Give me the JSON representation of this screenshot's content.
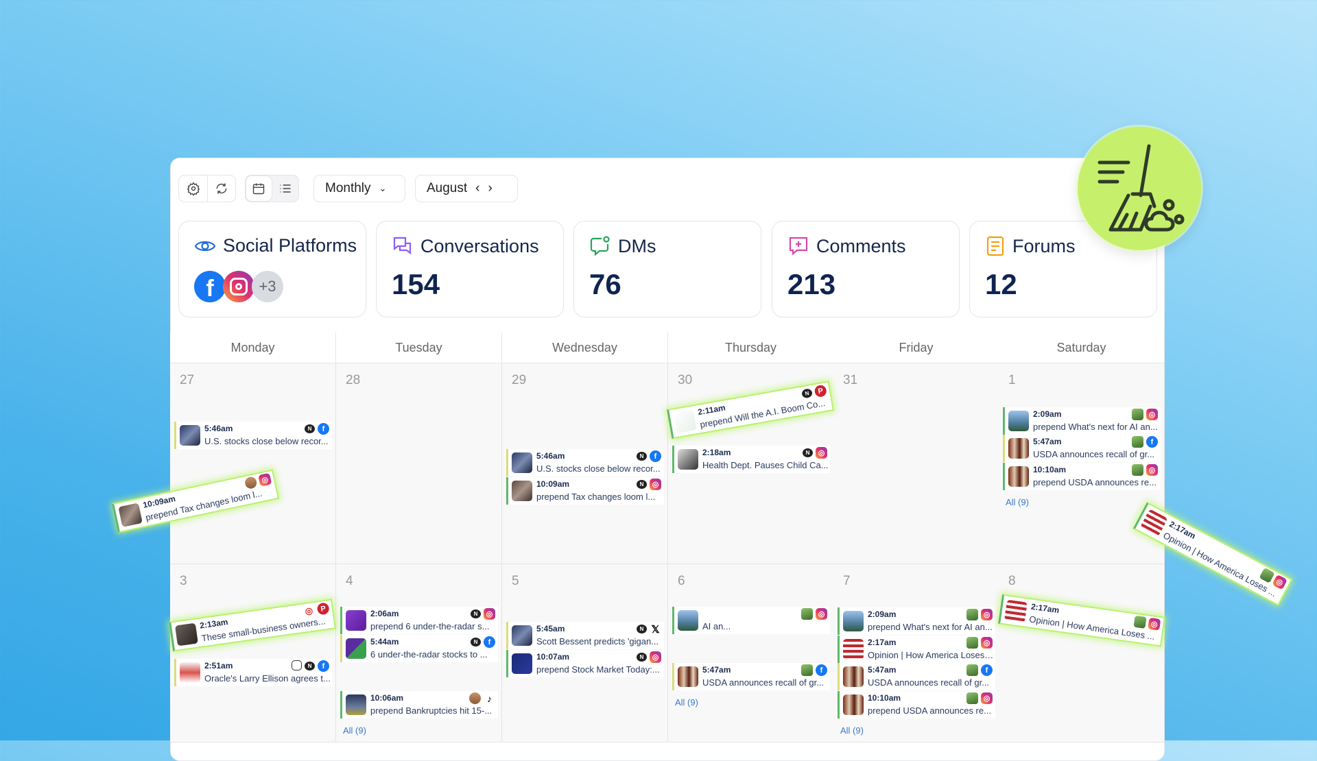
{
  "toolbar": {
    "view_mode": "Monthly",
    "month": "August"
  },
  "stats": [
    {
      "title": "Social Platforms",
      "platforms": [
        "facebook",
        "instagram"
      ],
      "more": "+3",
      "icon": "eye-icon"
    },
    {
      "title": "Conversations",
      "value": "154",
      "icon": "chat-bubbles-icon",
      "color": "#8b5cf6"
    },
    {
      "title": "DMs",
      "value": "76",
      "icon": "message-icon",
      "color": "#22a55a"
    },
    {
      "title": "Comments",
      "value": "213",
      "icon": "comment-plus-icon",
      "color": "#d946a8"
    },
    {
      "title": "Forums",
      "value": "12",
      "icon": "document-icon",
      "color": "#f59e0b"
    }
  ],
  "weekdays": [
    "Monday",
    "Tuesday",
    "Wednesday",
    "Thursday",
    "Friday",
    "Saturday"
  ],
  "cells": [
    {
      "day": "27",
      "events": [
        {
          "time": "5:46am",
          "title": "U.S. stocks close below recor...",
          "thumb": "people",
          "badge": "news",
          "platform": "fb",
          "accent": "y"
        }
      ]
    },
    {
      "day": "28",
      "events": []
    },
    {
      "day": "29",
      "events": [
        {
          "time": "5:46am",
          "title": "U.S. stocks close below recor...",
          "thumb": "people",
          "badge": "news",
          "platform": "fb",
          "accent": "y"
        },
        {
          "time": "10:09am",
          "title": "prepend Tax changes loom l...",
          "thumb": "street",
          "badge": "news",
          "platform": "ig",
          "accent": "g"
        }
      ]
    },
    {
      "day": "30",
      "events": [
        {
          "time": "2:18am",
          "title": "Health Dept. Pauses Child Ca...",
          "thumb": "gray",
          "badge": "news",
          "platform": "ig",
          "accent": "g"
        }
      ]
    },
    {
      "day": "31",
      "events": []
    },
    {
      "day": "1",
      "events": [
        {
          "time": "2:09am",
          "title": "prepend What's next for AI an...",
          "thumb": "building",
          "badge": "photo",
          "platform": "ig",
          "accent": "g"
        },
        {
          "time": "5:47am",
          "title": "USDA announces recall of gr...",
          "thumb": "food",
          "badge": "photo",
          "platform": "fb",
          "accent": "y"
        },
        {
          "time": "10:10am",
          "title": "prepend USDA announces re...",
          "thumb": "food",
          "badge": "photo",
          "platform": "ig",
          "accent": "g"
        }
      ],
      "all": "All (9)"
    },
    {
      "day": "3",
      "events": [
        {
          "time": "2:51am",
          "title": "Oracle's Larry Ellison agrees t...",
          "thumb": "red",
          "badge": "cam",
          "badge2": "news",
          "platform": "fb",
          "accent": "y"
        }
      ]
    },
    {
      "day": "4",
      "events": [
        {
          "time": "2:06am",
          "title": "prepend 6 under-the-radar s...",
          "thumb": "purple",
          "badge": "news",
          "platform": "ig",
          "accent": "g"
        },
        {
          "time": "5:44am",
          "title": "6 under-the-radar stocks to ...",
          "thumb": "ho",
          "badge": "news",
          "platform": "fb",
          "accent": "y"
        },
        {
          "time": "10:06am",
          "title": "prepend Bankruptcies hit 15-...",
          "thumb": "plane",
          "badge": "face",
          "platform": "tt",
          "accent": "g"
        }
      ],
      "all": "All (9)"
    },
    {
      "day": "5",
      "events": [
        {
          "time": "5:45am",
          "title": "Scott Bessent predicts 'gigan...",
          "thumb": "people",
          "badge": "news",
          "platform": "x",
          "accent": "y"
        },
        {
          "time": "10:07am",
          "title": "prepend Stock Market Today:...",
          "thumb": "navy",
          "badge": "news",
          "platform": "ig",
          "accent": "g"
        }
      ]
    },
    {
      "day": "6",
      "events": [
        {
          "time": "",
          "title": "AI an...",
          "thumb": "building",
          "badge": "photo",
          "platform": "ig",
          "accent": "g"
        },
        {
          "time": "5:47am",
          "title": "USDA announces recall of gr...",
          "thumb": "food",
          "badge": "photo",
          "platform": "fb",
          "accent": "y"
        }
      ],
      "all": "All (9)"
    },
    {
      "day": "7",
      "events": [
        {
          "time": "2:09am",
          "title": "prepend What's next for AI an...",
          "thumb": "building",
          "badge": "photo",
          "platform": "ig",
          "accent": "g"
        },
        {
          "time": "2:17am",
          "title": "Opinion | How America Loses ...",
          "thumb": "flag",
          "badge": "photo",
          "platform": "ig",
          "accent": "g"
        },
        {
          "time": "5:47am",
          "title": "USDA announces recall of gr...",
          "thumb": "food",
          "badge": "photo",
          "platform": "fb",
          "accent": "y"
        },
        {
          "time": "10:10am",
          "title": "prepend USDA announces re...",
          "thumb": "food",
          "badge": "photo",
          "platform": "ig",
          "accent": "g"
        }
      ],
      "all": "All (9)"
    },
    {
      "day": "8",
      "events": []
    }
  ],
  "dragged": [
    {
      "time": "10:09am",
      "title": "prepend Tax changes loom l...",
      "thumb": "street",
      "badge": "face",
      "platform": "ig"
    },
    {
      "time": "2:11am",
      "title": "prepend Will the A.I. Boom Co...",
      "thumb": "chart",
      "badge": "news",
      "platform": "pin"
    },
    {
      "time": "2:13am",
      "title": "These small-business owners...",
      "thumb": "store",
      "badge": "dish",
      "platform": "pin"
    },
    {
      "time": "2:17am",
      "title": "Opinion | How America Loses ...",
      "thumb": "flag",
      "badge": "photo",
      "platform": "ig"
    },
    {
      "time": "2:17am",
      "title": "Opinion | How America Loses ...",
      "thumb": "flag",
      "badge": "photo",
      "platform": "ig"
    }
  ],
  "badge": {
    "icon": "broom-icon",
    "color": "#c6ef6c"
  }
}
